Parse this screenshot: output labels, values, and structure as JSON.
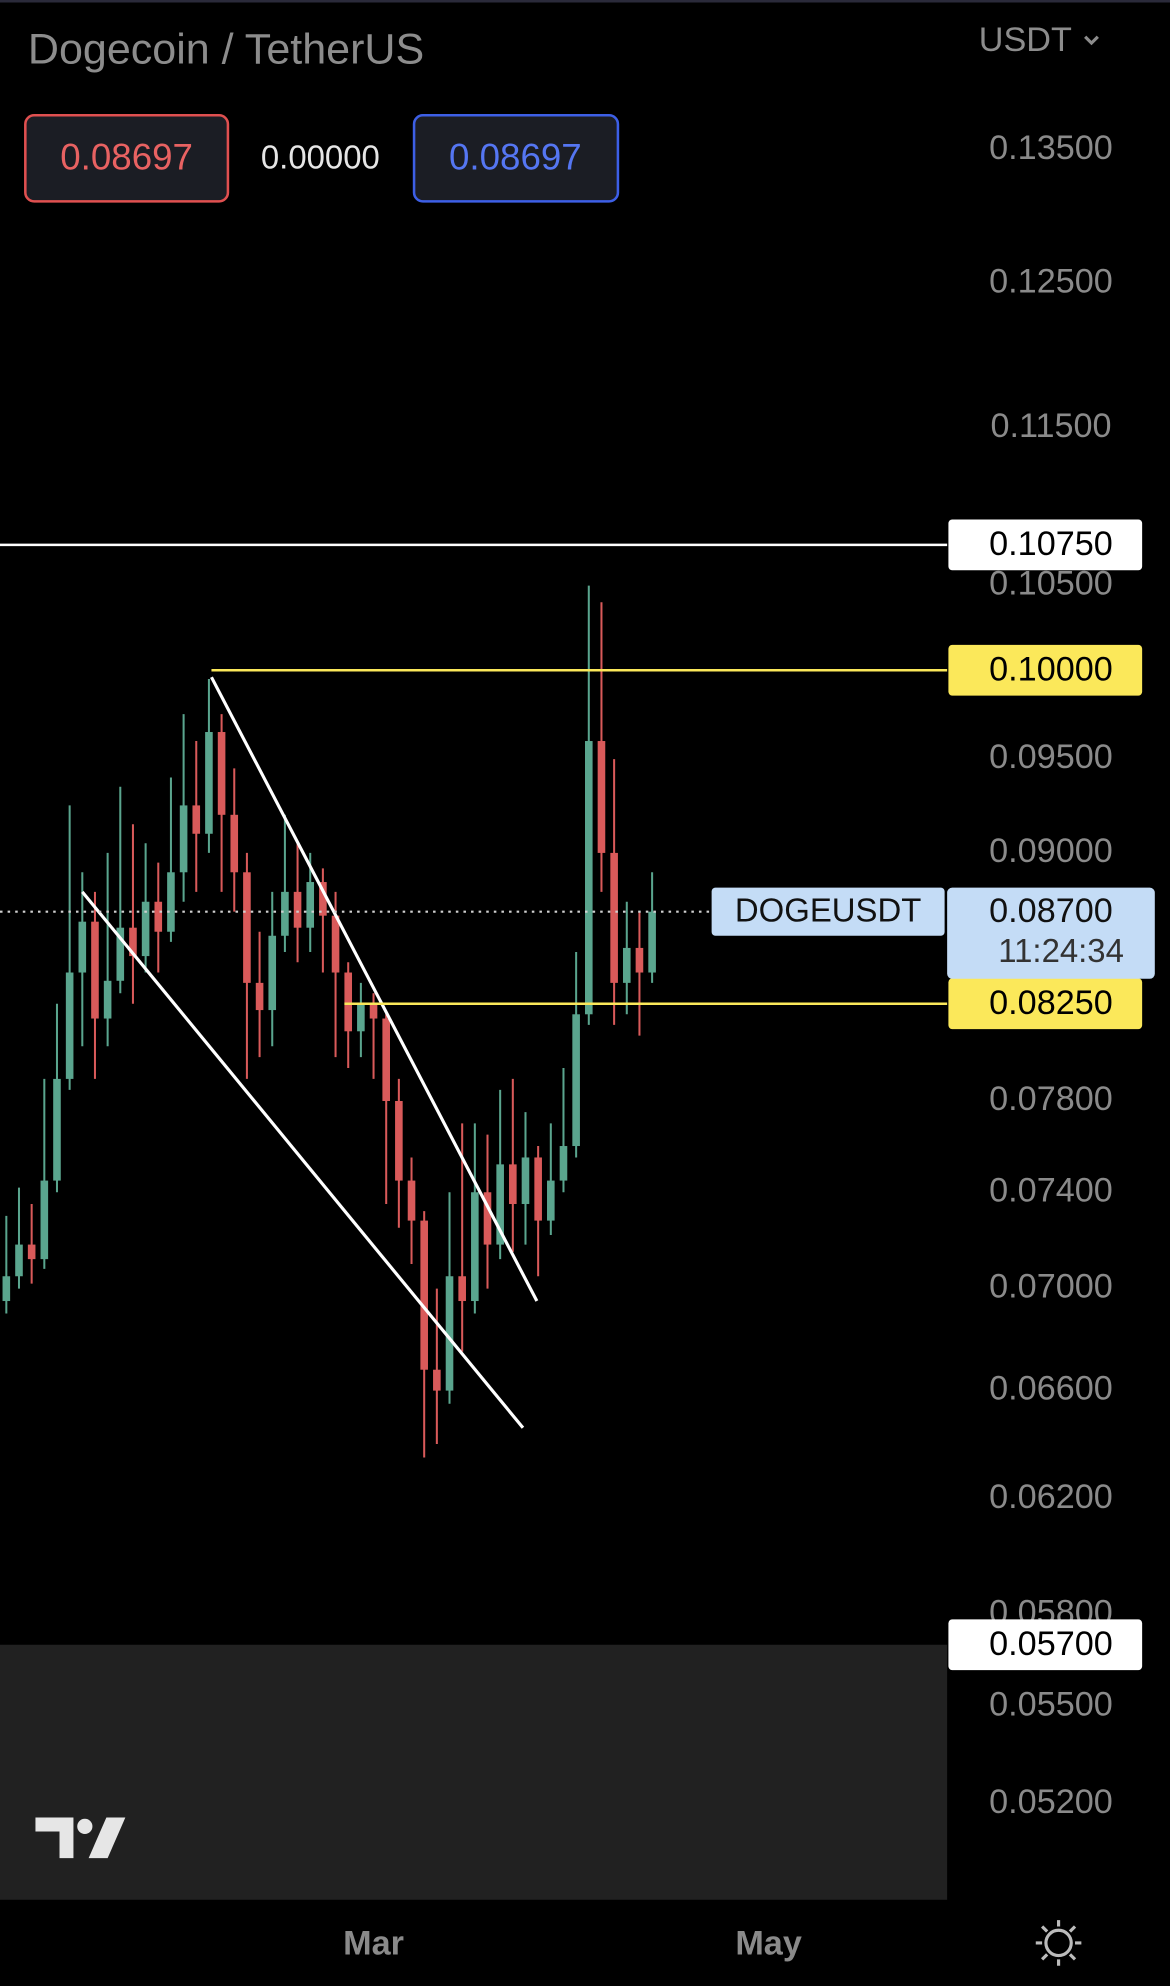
{
  "header": {
    "title": "Dogecoin / TetherUS",
    "currency": "USDT",
    "sell": "0.08697",
    "spread": "0.00000",
    "buy": "0.08697"
  },
  "chart_data": {
    "type": "candlestick",
    "log_scale": true,
    "up_color": "#5aa58e",
    "down_color": "#d95a5a",
    "ylim": [
      0.0492,
      0.1472
    ],
    "yticks": [
      {
        "value": 0.135,
        "label": "0.13500"
      },
      {
        "value": 0.125,
        "label": "0.12500"
      },
      {
        "value": 0.115,
        "label": "0.11500"
      },
      {
        "value": 0.105,
        "label": "0.10500"
      },
      {
        "value": 0.095,
        "label": "0.09500"
      },
      {
        "value": 0.09,
        "label": "0.09000"
      },
      {
        "value": 0.078,
        "label": "0.07800"
      },
      {
        "value": 0.074,
        "label": "0.07400"
      },
      {
        "value": 0.07,
        "label": "0.07000"
      },
      {
        "value": 0.066,
        "label": "0.06600"
      },
      {
        "value": 0.062,
        "label": "0.06200"
      },
      {
        "value": 0.058,
        "label": "0.05800"
      },
      {
        "value": 0.055,
        "label": "0.05500"
      },
      {
        "value": 0.052,
        "label": "0.05200"
      }
    ],
    "xticks": [
      {
        "value": 29,
        "label": "Mar"
      },
      {
        "value": 60.2,
        "label": "May"
      }
    ],
    "ohlc": [
      [
        0.0695,
        0.073,
        0.069,
        0.0705
      ],
      [
        0.0705,
        0.0742,
        0.07,
        0.0718
      ],
      [
        0.0718,
        0.0735,
        0.0702,
        0.0712
      ],
      [
        0.0712,
        0.079,
        0.0708,
        0.0745
      ],
      [
        0.0745,
        0.0825,
        0.074,
        0.079
      ],
      [
        0.079,
        0.0925,
        0.0785,
        0.084
      ],
      [
        0.084,
        0.089,
        0.0805,
        0.0865
      ],
      [
        0.0865,
        0.088,
        0.079,
        0.0818
      ],
      [
        0.0818,
        0.09,
        0.0805,
        0.0836
      ],
      [
        0.0836,
        0.0935,
        0.083,
        0.0862
      ],
      [
        0.0862,
        0.0915,
        0.0825,
        0.0848
      ],
      [
        0.0848,
        0.0905,
        0.084,
        0.0875
      ],
      [
        0.0875,
        0.0895,
        0.084,
        0.086
      ],
      [
        0.086,
        0.094,
        0.0855,
        0.089
      ],
      [
        0.089,
        0.0975,
        0.0875,
        0.0925
      ],
      [
        0.0925,
        0.096,
        0.088,
        0.091
      ],
      [
        0.091,
        0.0995,
        0.09,
        0.0965
      ],
      [
        0.0965,
        0.0975,
        0.088,
        0.092
      ],
      [
        0.092,
        0.0945,
        0.087,
        0.089
      ],
      [
        0.089,
        0.09,
        0.079,
        0.0835
      ],
      [
        0.0835,
        0.086,
        0.08,
        0.0822
      ],
      [
        0.0822,
        0.088,
        0.0805,
        0.0858
      ],
      [
        0.0858,
        0.092,
        0.085,
        0.088
      ],
      [
        0.088,
        0.0905,
        0.0845,
        0.0862
      ],
      [
        0.0862,
        0.09,
        0.085,
        0.0885
      ],
      [
        0.0885,
        0.0892,
        0.084,
        0.0868
      ],
      [
        0.0868,
        0.088,
        0.08,
        0.084
      ],
      [
        0.084,
        0.0845,
        0.0795,
        0.0812
      ],
      [
        0.0812,
        0.0835,
        0.08,
        0.0825
      ],
      [
        0.0825,
        0.083,
        0.079,
        0.0818
      ],
      [
        0.0818,
        0.082,
        0.0735,
        0.078
      ],
      [
        0.078,
        0.079,
        0.0725,
        0.0745
      ],
      [
        0.0745,
        0.0755,
        0.071,
        0.0728
      ],
      [
        0.0728,
        0.0732,
        0.0635,
        0.0668
      ],
      [
        0.0668,
        0.07,
        0.064,
        0.066
      ],
      [
        0.066,
        0.074,
        0.0655,
        0.0705
      ],
      [
        0.0705,
        0.077,
        0.0675,
        0.0695
      ],
      [
        0.0695,
        0.077,
        0.069,
        0.074
      ],
      [
        0.074,
        0.0765,
        0.07,
        0.0718
      ],
      [
        0.0718,
        0.0785,
        0.0712,
        0.0752
      ],
      [
        0.0752,
        0.079,
        0.0715,
        0.0735
      ],
      [
        0.0735,
        0.0775,
        0.0718,
        0.0755
      ],
      [
        0.0755,
        0.076,
        0.0705,
        0.0728
      ],
      [
        0.0728,
        0.077,
        0.0722,
        0.0745
      ],
      [
        0.0745,
        0.0795,
        0.074,
        0.076
      ],
      [
        0.076,
        0.085,
        0.0755,
        0.082
      ],
      [
        0.082,
        0.105,
        0.0815,
        0.096
      ],
      [
        0.096,
        0.104,
        0.088,
        0.09
      ],
      [
        0.09,
        0.095,
        0.0815,
        0.0835
      ],
      [
        0.0835,
        0.0875,
        0.082,
        0.0852
      ],
      [
        0.0852,
        0.087,
        0.081,
        0.084
      ],
      [
        0.084,
        0.089,
        0.0835,
        0.087
      ]
    ],
    "trendlines": [
      {
        "color": "#ffffff",
        "x": [
          16.2,
          41.9
        ],
        "y": [
          0.0996,
          0.0695
        ]
      },
      {
        "color": "#ffffff",
        "x": [
          6,
          40.8
        ],
        "y": [
          0.088,
          0.0646
        ]
      }
    ],
    "levels": [
      {
        "value": 0.1075,
        "label": "0.10750",
        "color": "#ffffff",
        "style": "line",
        "from": -0.5
      },
      {
        "value": 0.1,
        "label": "0.10000",
        "color": "#fbe85a",
        "style": "line",
        "from": 16.2
      },
      {
        "value": 0.0825,
        "label": "0.08250",
        "color": "#fbe85a",
        "style": "line",
        "from": 26.7
      },
      {
        "value": 0.057,
        "label": "0.05700",
        "color": "#ffffff",
        "style": "band",
        "from": -0.5
      }
    ],
    "last_price": {
      "value": 0.087,
      "label": "0.08700",
      "symbol": "DOGEUSDT",
      "countdown": "11:24:34"
    }
  }
}
